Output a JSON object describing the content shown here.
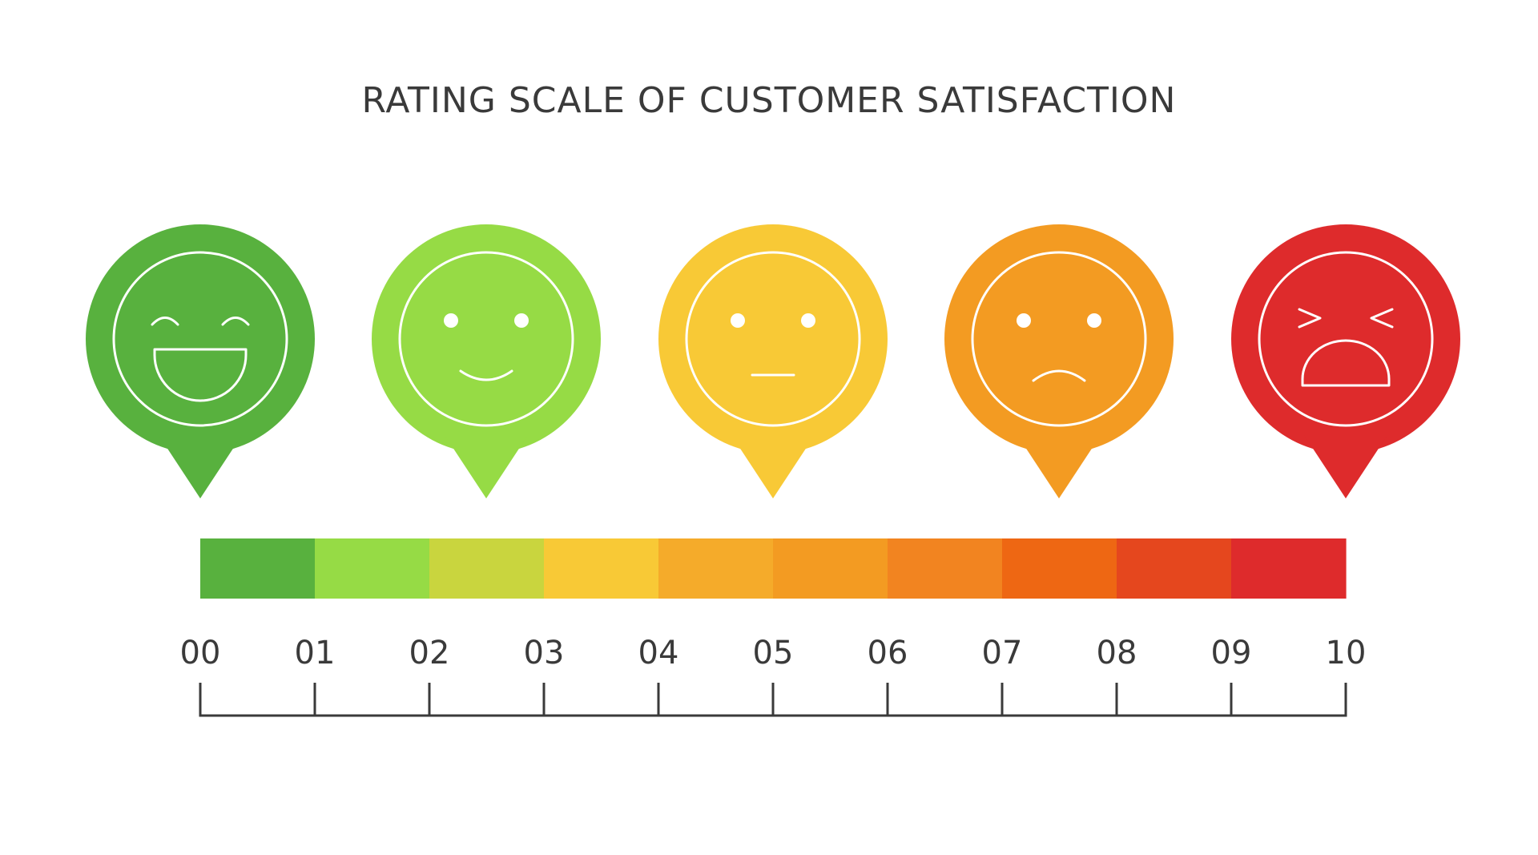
{
  "title": "RATING SCALE OF CUSTOMER SATISFACTION",
  "pins": [
    {
      "name": "laughing-face-pin",
      "face": "laughing",
      "color": "#58B13E"
    },
    {
      "name": "smiling-face-pin",
      "face": "smile",
      "color": "#96DB45"
    },
    {
      "name": "neutral-face-pin",
      "face": "neutral",
      "color": "#F8C936"
    },
    {
      "name": "sad-face-pin",
      "face": "sad",
      "color": "#F39B22"
    },
    {
      "name": "crying-face-pin",
      "face": "crying",
      "color": "#DE2B2C"
    }
  ],
  "bar_colors": [
    "#58B13E",
    "#96DB45",
    "#C9D53E",
    "#F8C936",
    "#F5AB2A",
    "#F39B22",
    "#F28420",
    "#EE6713",
    "#E5471E",
    "#DE2B2C"
  ],
  "ticks": [
    "00",
    "01",
    "02",
    "03",
    "04",
    "05",
    "06",
    "07",
    "08",
    "09",
    "10"
  ],
  "axis_color": "#3a3a3a"
}
